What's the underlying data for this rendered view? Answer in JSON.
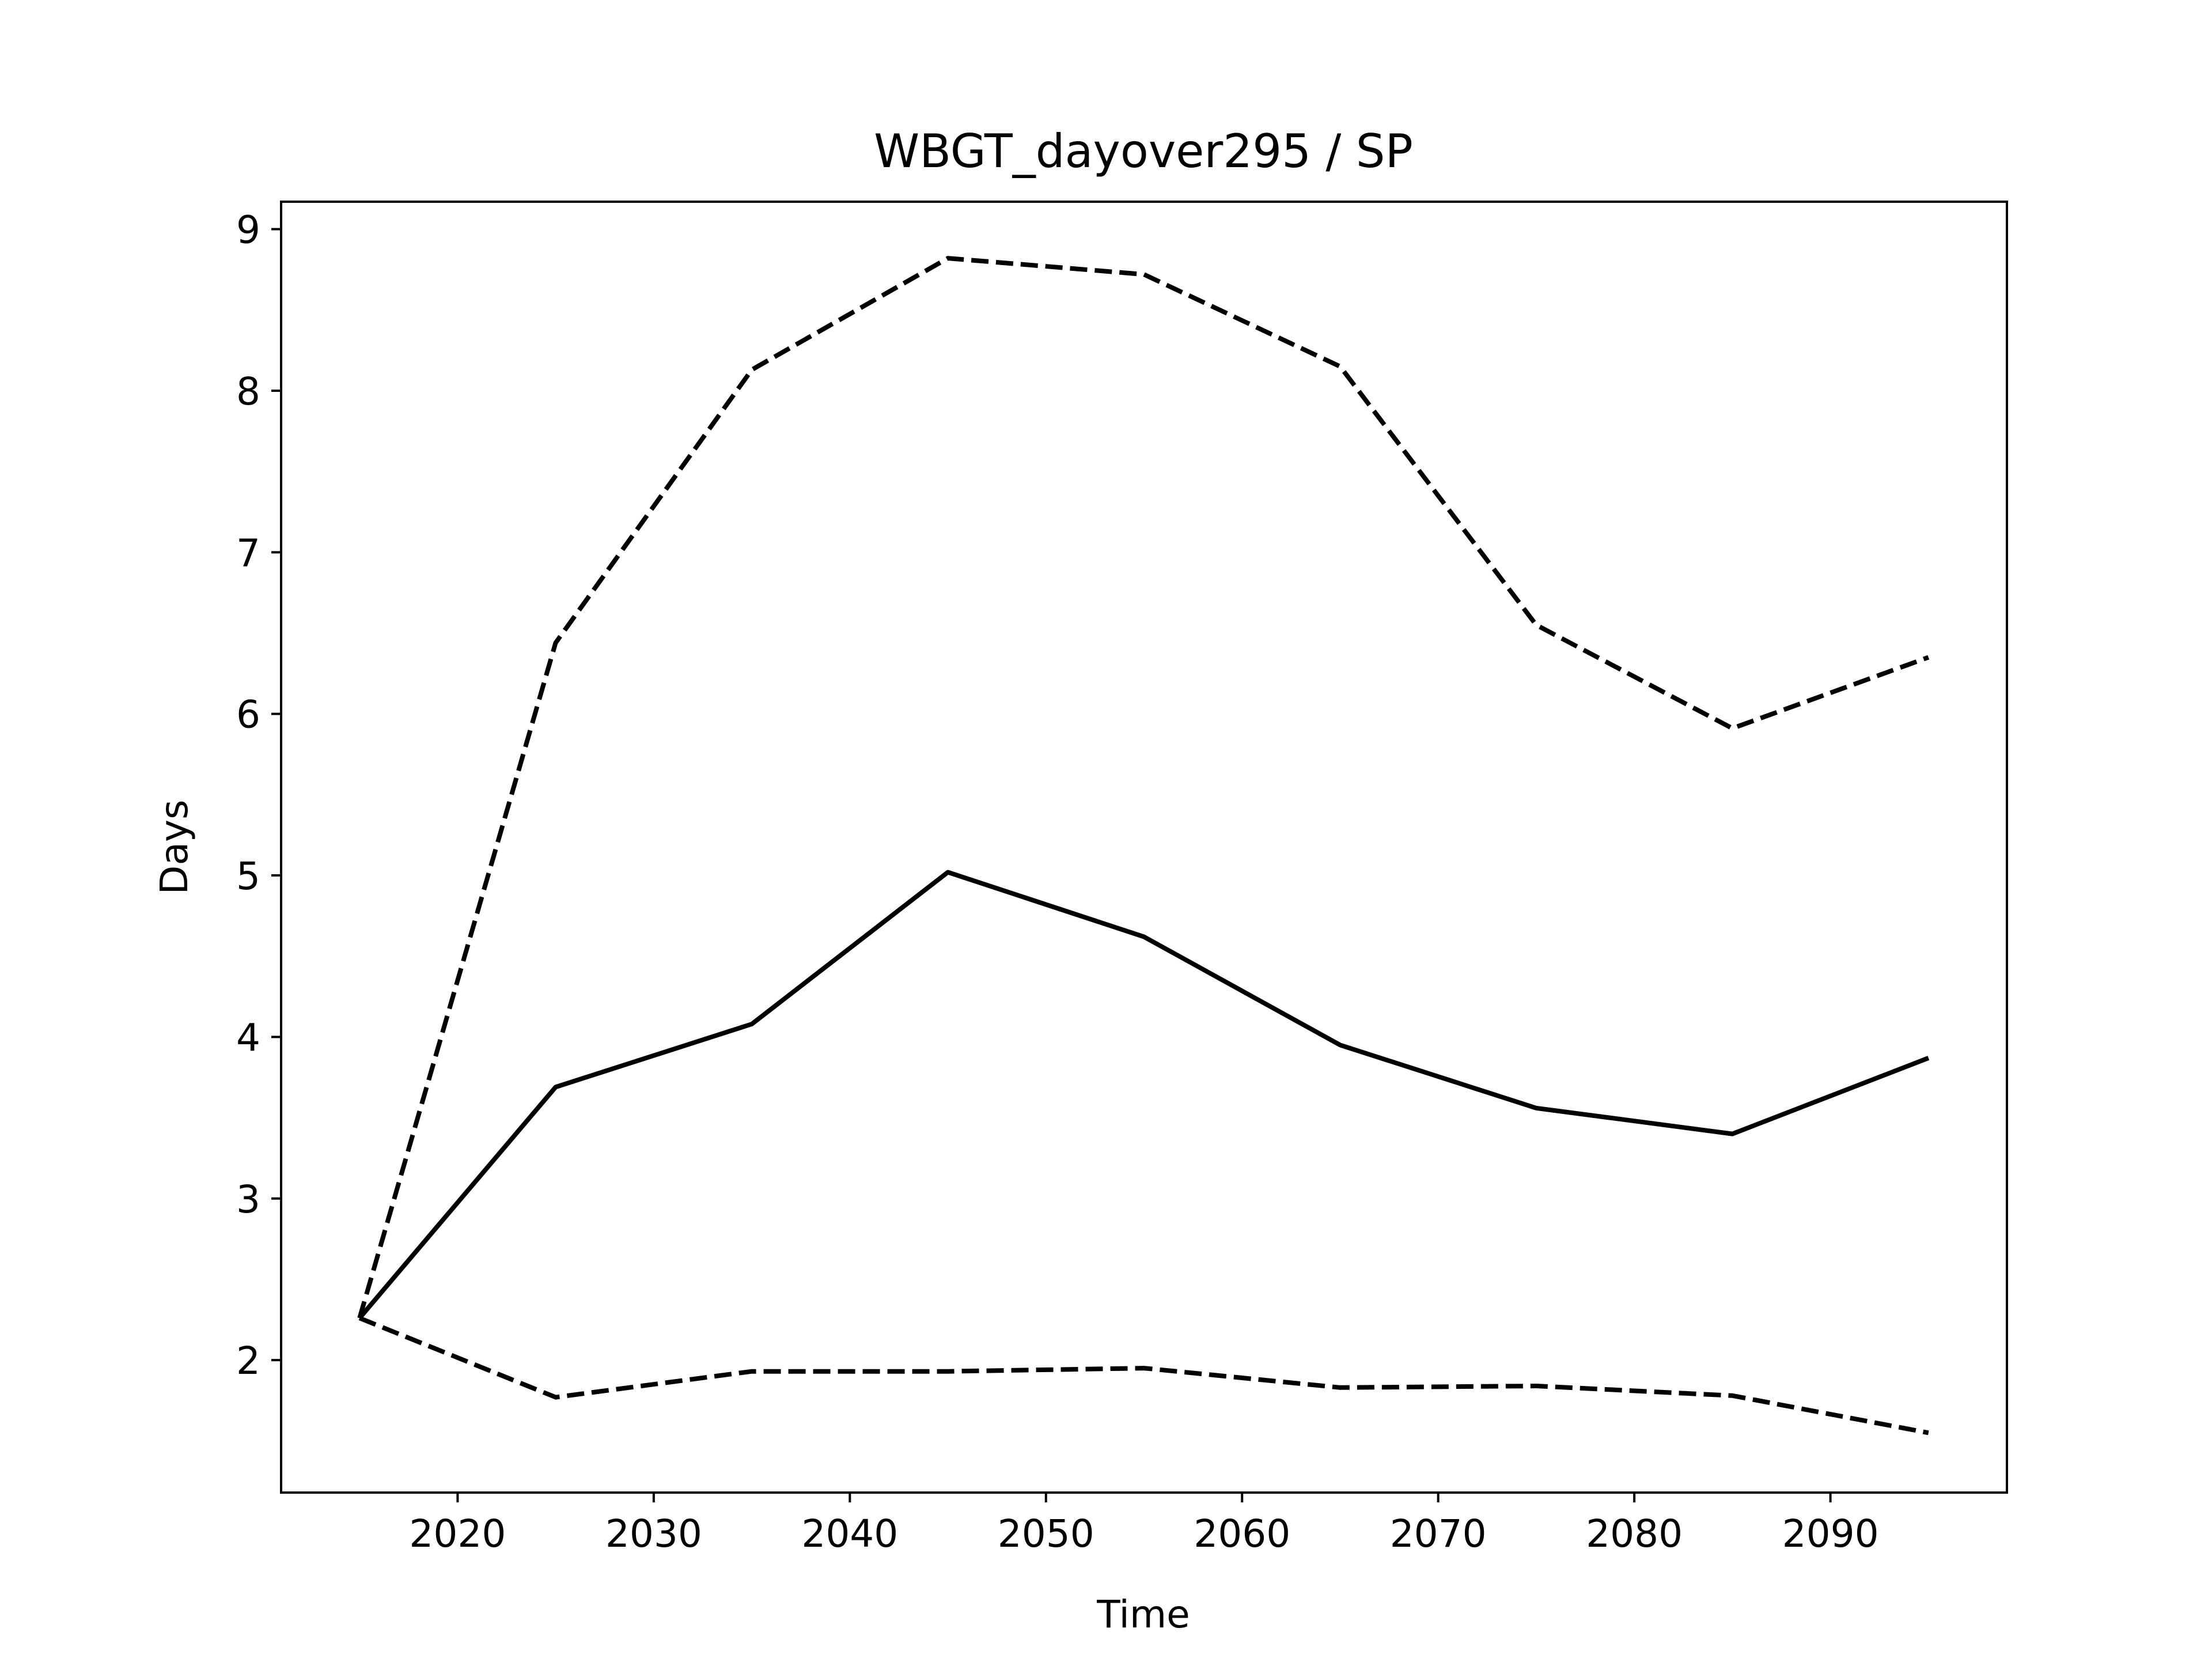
{
  "chart_data": {
    "type": "line",
    "title": "WBGT_dayover295 / SP",
    "xlabel": "Time",
    "ylabel": "Days",
    "xlim": [
      2011,
      2099
    ],
    "ylim": [
      1.18,
      9.17
    ],
    "xticks": [
      2020,
      2030,
      2040,
      2050,
      2060,
      2070,
      2080,
      2090
    ],
    "yticks": [
      2,
      3,
      4,
      5,
      6,
      7,
      8,
      9
    ],
    "grid": false,
    "line_color": "#000000",
    "x": [
      2015,
      2025,
      2035,
      2045,
      2055,
      2065,
      2075,
      2085,
      2095
    ],
    "series": [
      {
        "style": "solid",
        "values": [
          2.26,
          3.69,
          4.08,
          5.02,
          4.62,
          3.95,
          3.56,
          3.4,
          3.87
        ]
      },
      {
        "style": "dashed",
        "values": [
          2.26,
          6.44,
          8.13,
          8.82,
          8.72,
          8.15,
          6.55,
          5.91,
          6.35
        ]
      },
      {
        "style": "dashed",
        "values": [
          2.26,
          1.77,
          1.93,
          1.93,
          1.95,
          1.83,
          1.84,
          1.78,
          1.55
        ]
      }
    ]
  }
}
